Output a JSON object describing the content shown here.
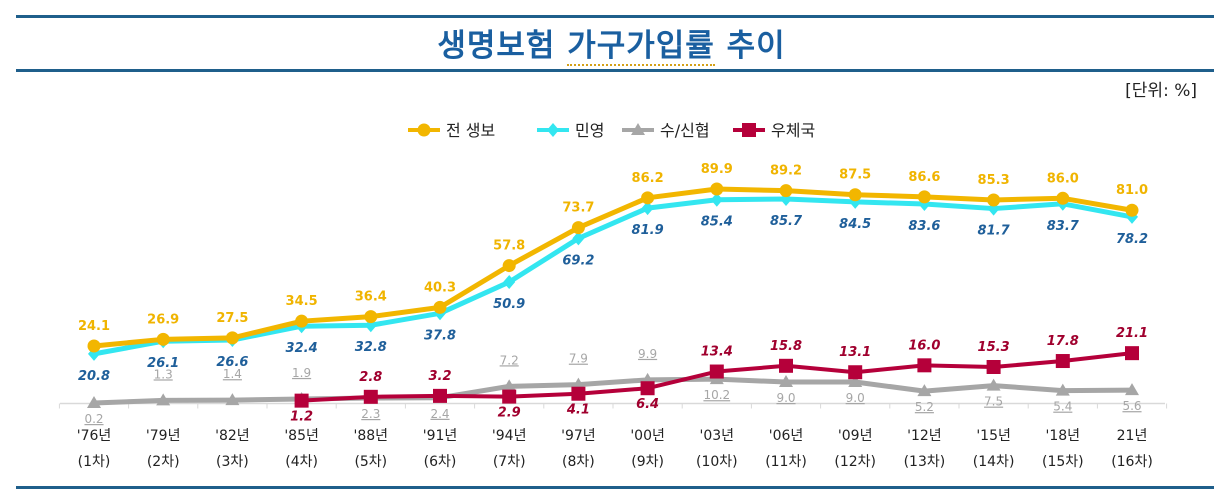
{
  "title_part1": "생명보험",
  "title_part2": "가구가입률",
  "title_part3": "추이",
  "unit": "[단위: %]",
  "chart_data": {
    "type": "line",
    "title": "생명보험 가구가입률 추이",
    "ylim": [
      0,
      100
    ],
    "grid": false,
    "legend_position": "top",
    "categories": [
      "'76년",
      "'79년",
      "'82년",
      "'85년",
      "'88년",
      "'91년",
      "'94년",
      "'97년",
      "'00년",
      "'03년",
      "'06년",
      "'09년",
      "'12년",
      "'15년",
      "'18년",
      "21년"
    ],
    "category_sublabels": [
      "(1차)",
      "(2차)",
      "(3차)",
      "(4차)",
      "(5차)",
      "(6차)",
      "(7차)",
      "(8차)",
      "(9차)",
      "(10차)",
      "(11차)",
      "(12차)",
      "(13차)",
      "(14차)",
      "(15차)",
      "(16차)"
    ],
    "series": [
      {
        "name": "전 생보",
        "color": "#f2b600",
        "marker": "circle",
        "label_color": "#f0b400",
        "values": [
          24.1,
          26.9,
          27.5,
          34.5,
          36.4,
          40.3,
          57.8,
          73.7,
          86.2,
          89.9,
          89.2,
          87.5,
          86.6,
          85.3,
          86.0,
          81.0
        ]
      },
      {
        "name": "민영",
        "color": "#33e6f0",
        "marker": "diamond",
        "label_color": "#1f5f9a",
        "values": [
          20.8,
          26.1,
          26.6,
          32.4,
          32.8,
          37.8,
          50.9,
          69.2,
          81.9,
          85.4,
          85.7,
          84.5,
          83.6,
          81.7,
          83.7,
          78.2
        ]
      },
      {
        "name": "수/신협",
        "color": "#a6a6a6",
        "marker": "triangle",
        "label_color": "#a6a6a6",
        "values": [
          0.2,
          1.3,
          1.4,
          1.9,
          2.3,
          2.4,
          7.2,
          7.9,
          9.9,
          10.2,
          9.0,
          9.0,
          5.2,
          7.5,
          5.4,
          5.6
        ]
      },
      {
        "name": "우체국",
        "color": "#b5003a",
        "marker": "square",
        "label_color": "#a0002e",
        "values": [
          null,
          null,
          null,
          1.2,
          2.8,
          3.2,
          2.9,
          4.1,
          6.4,
          13.4,
          15.8,
          13.1,
          16.0,
          15.3,
          17.8,
          21.1
        ]
      }
    ]
  }
}
